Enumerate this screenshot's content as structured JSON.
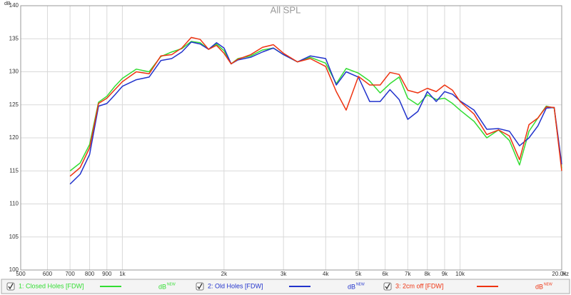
{
  "chart_data": {
    "type": "line",
    "title": "All SPL",
    "y_label": "dB",
    "x_label": "Hz",
    "x_scale": "log",
    "grid": true,
    "unit": "dB",
    "unit_sup": "NEW",
    "xlim": [
      500,
      20000
    ],
    "ylim": [
      100,
      140
    ],
    "xticks": [
      500,
      600,
      700,
      800,
      900,
      {
        "value": 1000,
        "label": "1k"
      },
      {
        "value": 2000,
        "label": "2k"
      },
      {
        "value": 3000,
        "label": "3k"
      },
      {
        "value": 4000,
        "label": "4k"
      },
      {
        "value": 5000,
        "label": "5k"
      },
      {
        "value": 6000,
        "label": "6k"
      },
      {
        "value": 7000,
        "label": "7k"
      },
      {
        "value": 8000,
        "label": "8k"
      },
      {
        "value": 9000,
        "label": "9k"
      },
      {
        "value": 10000,
        "label": "10k"
      },
      {
        "value": 20000,
        "label": "20.0k"
      }
    ],
    "yticks": [
      100,
      105,
      110,
      115,
      120,
      125,
      130,
      135,
      140
    ],
    "x": [
      700,
      750,
      800,
      850,
      900,
      950,
      1000,
      1100,
      1200,
      1300,
      1400,
      1500,
      1600,
      1700,
      1800,
      1900,
      2000,
      2100,
      2200,
      2400,
      2600,
      2800,
      3000,
      3300,
      3600,
      4000,
      4300,
      4600,
      5000,
      5400,
      5800,
      6200,
      6600,
      7000,
      7500,
      8000,
      8500,
      9000,
      9500,
      10000,
      11000,
      12000,
      13000,
      14000,
      15000,
      16000,
      17000,
      18000,
      19000,
      20000
    ],
    "series": [
      {
        "name": "1: Closed Holes [FDW]",
        "color": "#33dd33",
        "checked": true,
        "values": [
          115,
          116.2,
          119,
          125.4,
          126.3,
          127.8,
          129,
          130.4,
          130,
          132.3,
          133,
          133.5,
          134.6,
          134.4,
          133.4,
          134.2,
          133.2,
          131.2,
          132,
          132.4,
          133.3,
          133.6,
          132.6,
          131.5,
          132.2,
          131.3,
          128.2,
          130.5,
          129.8,
          128.6,
          126.8,
          128.2,
          129.2,
          126,
          125,
          126.5,
          125.8,
          126,
          125.2,
          124.2,
          122.5,
          120,
          121.2,
          119.6,
          115.9,
          121,
          123,
          124.8,
          124.5,
          115.4
        ]
      },
      {
        "name": "2: Old Holes [FDW]",
        "color": "#2233cc",
        "checked": true,
        "values": [
          113,
          114.5,
          117.5,
          124.8,
          125.2,
          126.5,
          127.8,
          128.8,
          129.2,
          131.7,
          132,
          133,
          134.5,
          134.2,
          133.4,
          134.4,
          133.6,
          131.2,
          131.8,
          132.2,
          133,
          133.6,
          132.6,
          131.5,
          132.4,
          132,
          128,
          130,
          129.2,
          125.5,
          125.5,
          127.3,
          125.8,
          122.8,
          124,
          127,
          125.5,
          127,
          126.6,
          125.6,
          124.2,
          121.3,
          121.4,
          121,
          118.8,
          120,
          121.8,
          124.5,
          124.6,
          116
        ]
      },
      {
        "name": "3: 2cm off [FDW]",
        "color": "#ee3311",
        "checked": true,
        "values": [
          114.2,
          115.5,
          118.5,
          125.2,
          126,
          127.3,
          128.5,
          130,
          129.7,
          132.4,
          132.6,
          133.6,
          135.2,
          134.9,
          133.4,
          134,
          132.8,
          131.2,
          131.9,
          132.6,
          133.7,
          134.1,
          132.8,
          131.5,
          132,
          130.8,
          127,
          124.2,
          129.3,
          128,
          128,
          129.9,
          129.6,
          127.2,
          126.8,
          127.5,
          127,
          128,
          127.2,
          125.5,
          123.6,
          120.5,
          121.2,
          120.3,
          116.7,
          122,
          123,
          124.7,
          124.6,
          115
        ]
      }
    ]
  }
}
